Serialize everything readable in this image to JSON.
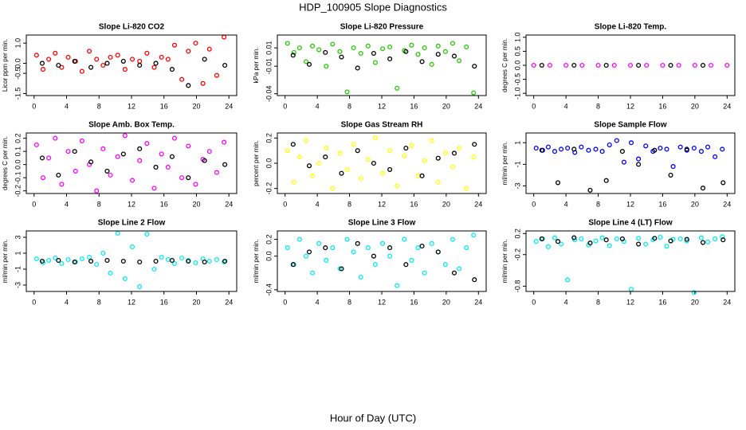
{
  "title": "HDP_100905  Slope Diagnostics",
  "xlabel": "Hour of Day (UTC)",
  "chart_data": [
    {
      "type": "scatter",
      "title": "Slope Li-820 CO2",
      "ylabel": "Licor ppm per min.",
      "xlim": [
        -0.96,
        24.96
      ],
      "xticks": [
        0,
        4,
        8,
        12,
        16,
        20,
        24
      ],
      "ylim": [
        -1.6,
        1.4
      ],
      "yticks": [
        {
          "value": -1.5,
          "label": "-1.5"
        },
        {
          "value": -0.5,
          "label": "-0.5"
        },
        {
          "value": 0,
          "label": "0.0"
        },
        {
          "value": 1,
          "label": "1.0"
        }
      ],
      "series": [
        {
          "color": "#ff0000",
          "x": [
            0.3,
            1.1,
            1.8,
            2.6,
            3.4,
            4.2,
            5.1,
            5.9,
            6.8,
            7.7,
            8.5,
            9.4,
            10.3,
            11.2,
            12.1,
            13,
            13.9,
            14.8,
            15.7,
            16.5,
            17.3,
            18.2,
            19,
            19.9,
            20.8,
            21.6,
            22.5,
            23.4
          ],
          "values": [
            0.4,
            -0.3,
            0.2,
            0.5,
            -0.2,
            0.3,
            0.1,
            -0.4,
            0.6,
            0.2,
            -0.1,
            0.3,
            0.4,
            -0.3,
            0.2,
            0.1,
            0.5,
            -0.2,
            0.3,
            0.2,
            0.9,
            -0.8,
            0.6,
            1.0,
            -1.0,
            0.7,
            -0.6,
            1.3
          ]
        },
        {
          "color": "#000000",
          "x": [
            1,
            3,
            5,
            7,
            9,
            11,
            13,
            15,
            17,
            19,
            21,
            23.5
          ],
          "values": [
            0,
            -0.1,
            0.1,
            -0.2,
            0,
            0.1,
            -0.1,
            0,
            -0.3,
            -1.1,
            0.2,
            -0.1
          ]
        }
      ]
    },
    {
      "type": "scatter",
      "title": "Slope Li-820 Pressure",
      "ylabel": "kPa per min.",
      "xlim": [
        -0.96,
        24.96
      ],
      "xticks": [
        0,
        4,
        8,
        12,
        16,
        20,
        24
      ],
      "ylim": [
        -0.042,
        0.024
      ],
      "yticks": [
        -0.04,
        -0.01,
        0.01
      ],
      "series": [
        {
          "color": "#22cc00",
          "x": [
            0.3,
            1.1,
            1.8,
            2.6,
            3.4,
            4.2,
            5.1,
            5.9,
            6.8,
            7.7,
            8.5,
            9.4,
            10.3,
            11.2,
            12.1,
            13,
            13.9,
            14.8,
            15.7,
            16.5,
            17.3,
            18.2,
            19,
            19.9,
            20.8,
            21.6,
            22.5,
            23.4
          ],
          "values": [
            0.015,
            0.005,
            0.01,
            -0.005,
            0.012,
            0.008,
            -0.01,
            0.014,
            0.006,
            -0.038,
            0.01,
            0.004,
            0.012,
            -0.006,
            0.009,
            0.011,
            -0.034,
            0.007,
            0.013,
            0.003,
            0.01,
            -0.008,
            0.012,
            0.006,
            0.015,
            -0.004,
            0.011,
            -0.039
          ]
        },
        {
          "color": "#000000",
          "x": [
            1,
            3,
            5,
            7,
            9,
            11,
            13,
            15,
            17,
            19,
            21,
            23.5
          ],
          "values": [
            0.002,
            -0.008,
            0.005,
            0,
            -0.012,
            0.004,
            -0.002,
            0.006,
            -0.005,
            0.003,
            0.001,
            -0.01
          ]
        }
      ]
    },
    {
      "type": "scatter",
      "title": "Slope Li-820 Temp.",
      "ylabel": "degrees C per min.",
      "xlim": [
        -0.96,
        24.96
      ],
      "xticks": [
        0,
        4,
        8,
        12,
        16,
        20,
        24
      ],
      "ylim": [
        -1.08,
        1.08
      ],
      "yticks": [
        {
          "value": -1,
          "label": "-1.0"
        },
        {
          "value": -0.5,
          "label": "-0.5"
        },
        {
          "value": 0,
          "label": "0.0"
        },
        {
          "value": 0.5,
          "label": "0.5"
        },
        {
          "value": 1,
          "label": "1.0"
        }
      ],
      "series": [
        {
          "color": "#ff00ff",
          "x": [
            0,
            2,
            4,
            6,
            8,
            10,
            12,
            14,
            16,
            18,
            20,
            22,
            24
          ],
          "values": [
            0,
            0,
            0,
            0,
            0,
            0,
            0,
            0,
            0,
            0,
            0,
            0,
            0
          ]
        },
        {
          "color": "#000000",
          "x": [
            1,
            5,
            9,
            13,
            17,
            21
          ],
          "values": [
            0,
            0,
            0,
            0,
            0,
            0
          ]
        }
      ]
    },
    {
      "type": "scatter",
      "title": "Slope Amb. Box Temp.",
      "ylabel": "degrees C per min.",
      "xlim": [
        -0.96,
        24.96
      ],
      "xticks": [
        0,
        4,
        8,
        12,
        16,
        20,
        24
      ],
      "ylim": [
        -0.22,
        0.24
      ],
      "yticks": [
        {
          "value": -0.2,
          "label": "-0.2"
        },
        {
          "value": -0.1,
          "label": "-0.1"
        },
        {
          "value": 0,
          "label": "0.0"
        },
        {
          "value": 0.1,
          "label": "0.1"
        },
        {
          "value": 0.2,
          "label": "0.2"
        }
      ],
      "series": [
        {
          "color": "#ff00ff",
          "x": [
            0.3,
            1.1,
            1.8,
            2.6,
            3.4,
            4.2,
            5.1,
            5.9,
            6.8,
            7.7,
            8.5,
            9.4,
            10.3,
            11.2,
            12.1,
            13,
            13.9,
            14.8,
            15.7,
            16.5,
            17.3,
            18.2,
            19,
            19.9,
            20.8,
            21.6,
            22.5,
            23.4
          ],
          "values": [
            0.15,
            -0.1,
            0.05,
            0.2,
            -0.15,
            0.1,
            -0.05,
            0.18,
            0,
            -0.2,
            0.12,
            -0.08,
            0.06,
            0.22,
            -0.12,
            0.03,
            0.16,
            -0.18,
            0.08,
            -0.02,
            0.2,
            -0.1,
            0.14,
            -0.15,
            0.04,
            0.1,
            -0.06,
            0.17
          ]
        },
        {
          "color": "#000000",
          "x": [
            1,
            3,
            5,
            7,
            9,
            11,
            13,
            15,
            17,
            19,
            21,
            23.5
          ],
          "values": [
            0.05,
            -0.08,
            0.1,
            0.02,
            -0.05,
            0.08,
            0.12,
            -0.02,
            0.06,
            -0.1,
            0.03,
            0
          ]
        }
      ]
    },
    {
      "type": "scatter",
      "title": "Slope Gas Stream RH",
      "ylabel": "percent per min.",
      "xlim": [
        -0.96,
        24.96
      ],
      "xticks": [
        0,
        4,
        8,
        12,
        16,
        20,
        24
      ],
      "ylim": [
        -0.24,
        0.24
      ],
      "yticks": [
        {
          "value": -0.2,
          "label": "-0.2"
        },
        {
          "value": 0,
          "label": "0.0"
        },
        {
          "value": 0.2,
          "label": "0.2"
        }
      ],
      "series": [
        {
          "color": "#ffff00",
          "x": [
            0.3,
            1.1,
            1.8,
            2.6,
            3.4,
            4.2,
            5.1,
            5.9,
            6.8,
            7.7,
            8.5,
            9.4,
            10.3,
            11.2,
            12.1,
            13,
            13.9,
            14.8,
            15.7,
            16.5,
            17.3,
            18.2,
            19,
            19.9,
            20.8,
            21.6,
            22.5,
            23.4
          ],
          "values": [
            0.1,
            -0.15,
            0.05,
            0.18,
            -0.1,
            0,
            0.12,
            -0.2,
            0.08,
            -0.05,
            0.15,
            -0.12,
            0.03,
            0.2,
            -0.08,
            0.1,
            -0.18,
            0.06,
            0.14,
            -0.1,
            0.02,
            0.18,
            -0.15,
            0.08,
            -0.03,
            0.12,
            -0.2,
            0.05
          ]
        },
        {
          "color": "#000000",
          "x": [
            1,
            3,
            5,
            7,
            9,
            11,
            13,
            15,
            17,
            19,
            21,
            23.5
          ],
          "values": [
            0.15,
            -0.02,
            0.05,
            -0.08,
            0.1,
            0,
            -0.05,
            0.12,
            -0.1,
            0.04,
            0.08,
            0.15
          ]
        }
      ]
    },
    {
      "type": "scatter",
      "title": "Slope Sample Flow",
      "ylabel": "ml/min per min.",
      "xlim": [
        -0.96,
        24.96
      ],
      "xticks": [
        0,
        4,
        8,
        12,
        16,
        20,
        24
      ],
      "ylim": [
        -3.7,
        1.9
      ],
      "yticks": [
        -3,
        -1,
        1
      ],
      "series": [
        {
          "color": "#0000ff",
          "x": [
            0.3,
            1.1,
            1.8,
            2.6,
            3.4,
            4.2,
            5.1,
            5.9,
            6.8,
            7.7,
            8.5,
            9.4,
            10.3,
            11.2,
            12.1,
            13,
            13.9,
            14.8,
            15.7,
            16.5,
            17.3,
            18.2,
            19,
            19.9,
            20.8,
            21.6,
            22.5,
            23.4
          ],
          "values": [
            0.5,
            0.3,
            0.6,
            0.2,
            0.4,
            0.5,
            0.1,
            0.6,
            0.3,
            0.4,
            0.2,
            0.8,
            1.2,
            -0.8,
            1,
            -0.5,
            0.7,
            0.2,
            0.5,
            0.4,
            -1.2,
            0.6,
            0.3,
            0.5,
            0.2,
            0.6,
            -0.3,
            0.4
          ]
        },
        {
          "color": "#000000",
          "x": [
            1,
            3,
            5,
            7,
            9,
            11,
            13,
            15,
            17,
            19,
            21,
            23.5
          ],
          "values": [
            0.3,
            -2.7,
            0.4,
            -3.4,
            -2.5,
            0.2,
            -1,
            0.3,
            -2,
            0.4,
            -3.2,
            -2.7
          ]
        }
      ]
    },
    {
      "type": "scatter",
      "title": "Slope Line 2 Flow",
      "ylabel": "ml/min per min.",
      "xlim": [
        -0.96,
        24.96
      ],
      "xticks": [
        0,
        4,
        8,
        12,
        16,
        20,
        24
      ],
      "ylim": [
        -3.8,
        3.8
      ],
      "yticks": [
        -3,
        -1,
        1,
        3
      ],
      "series": [
        {
          "color": "#00eeee",
          "x": [
            0.3,
            1.1,
            1.8,
            2.6,
            3.4,
            4.2,
            5.1,
            5.9,
            6.8,
            7.7,
            8.5,
            9.4,
            10.3,
            11.2,
            12.1,
            13,
            13.9,
            14.8,
            15.7,
            16.5,
            17.3,
            18.2,
            19,
            19.9,
            20.8,
            21.6,
            22.5,
            23.4
          ],
          "values": [
            0.3,
            -0.2,
            0.1,
            0.4,
            -0.3,
            0.2,
            -0.1,
            0.3,
            0.5,
            -0.4,
            1,
            -1.5,
            3.5,
            -2.2,
            1.8,
            -3.2,
            3.4,
            -1,
            0.5,
            0.2,
            -0.3,
            0.4,
            0.1,
            -0.2,
            0.3,
            0,
            0.2,
            -0.1
          ]
        },
        {
          "color": "#000000",
          "x": [
            1,
            3,
            5,
            7,
            9,
            11,
            13,
            15,
            17,
            19,
            21,
            23.5
          ],
          "values": [
            0,
            0.1,
            -0.1,
            0,
            0.1,
            0,
            -0.1,
            0,
            0.1,
            0,
            -0.1,
            0
          ]
        }
      ]
    },
    {
      "type": "scatter",
      "title": "Slope Line 3 Flow",
      "ylabel": "ml/min per min.",
      "xlim": [
        -0.96,
        24.96
      ],
      "xticks": [
        0,
        4,
        8,
        12,
        16,
        20,
        24
      ],
      "ylim": [
        -0.42,
        0.3
      ],
      "yticks": [
        {
          "value": -0.4,
          "label": "-0.4"
        },
        {
          "value": 0,
          "label": "0.0"
        },
        {
          "value": 0.2,
          "label": "0.2"
        }
      ],
      "series": [
        {
          "color": "#00eeee",
          "x": [
            0.3,
            1.1,
            1.8,
            2.6,
            3.4,
            4.2,
            5.1,
            5.9,
            6.8,
            7.7,
            8.5,
            9.4,
            10.3,
            11.2,
            12.1,
            13,
            13.9,
            14.8,
            15.7,
            16.5,
            17.3,
            18.2,
            19,
            19.9,
            20.8,
            21.6,
            22.5,
            23.4
          ],
          "values": [
            0.1,
            -0.1,
            0.2,
            0,
            -0.2,
            0.15,
            -0.05,
            0.1,
            -0.15,
            0.2,
            0.05,
            -0.25,
            0.1,
            -0.1,
            0.15,
            0,
            -0.35,
            0.2,
            -0.05,
            0.1,
            -0.2,
            0.15,
            0.05,
            -0.1,
            0.2,
            -0.15,
            0.1,
            0.25
          ]
        },
        {
          "color": "#000000",
          "x": [
            1,
            3,
            5,
            7,
            9,
            11,
            13,
            15,
            17,
            19,
            21,
            23.5
          ],
          "values": [
            -0.1,
            0.05,
            0.1,
            -0.15,
            0.15,
            0,
            0.1,
            -0.1,
            0.12,
            0.05,
            -0.2,
            -0.28
          ]
        }
      ]
    },
    {
      "type": "scatter",
      "title": "Slope Line 4 (LT) Flow",
      "ylabel": "ml/min per min.",
      "xlim": [
        -0.96,
        24.96
      ],
      "xticks": [
        0,
        4,
        8,
        12,
        16,
        20,
        24
      ],
      "ylim": [
        -0.9,
        0.25
      ],
      "yticks": [
        {
          "value": -0.8,
          "label": "-0.8"
        },
        {
          "value": -0.2,
          "label": "-0.2"
        },
        {
          "value": 0.2,
          "label": "0.2"
        }
      ],
      "series": [
        {
          "color": "#00eeee",
          "x": [
            0.3,
            1.1,
            1.8,
            2.6,
            3.4,
            4.2,
            5.1,
            5.9,
            6.8,
            7.7,
            8.5,
            9.4,
            10.3,
            11.2,
            12.1,
            13,
            13.9,
            14.8,
            15.7,
            16.5,
            17.3,
            18.2,
            19,
            19.9,
            20.8,
            21.6,
            22.5,
            23.4
          ],
          "values": [
            0.05,
            0.1,
            -0.05,
            0.12,
            0,
            -0.68,
            0.08,
            0.1,
            -0.02,
            0.06,
            0.12,
            -0.03,
            0.1,
            0.05,
            -0.86,
            0.11,
            0,
            0.08,
            0.13,
            -0.04,
            0.09,
            0.1,
            0.06,
            -0.92,
            0.12,
            0.04,
            0.1,
            0.14
          ]
        },
        {
          "color": "#000000",
          "x": [
            1,
            3,
            5,
            7,
            9,
            11,
            13,
            15,
            17,
            19,
            21,
            23.5
          ],
          "values": [
            0.1,
            0.05,
            0.12,
            0.02,
            0.08,
            0.1,
            0,
            0.11,
            0.06,
            0.09,
            0.03,
            0.08
          ]
        }
      ]
    }
  ]
}
